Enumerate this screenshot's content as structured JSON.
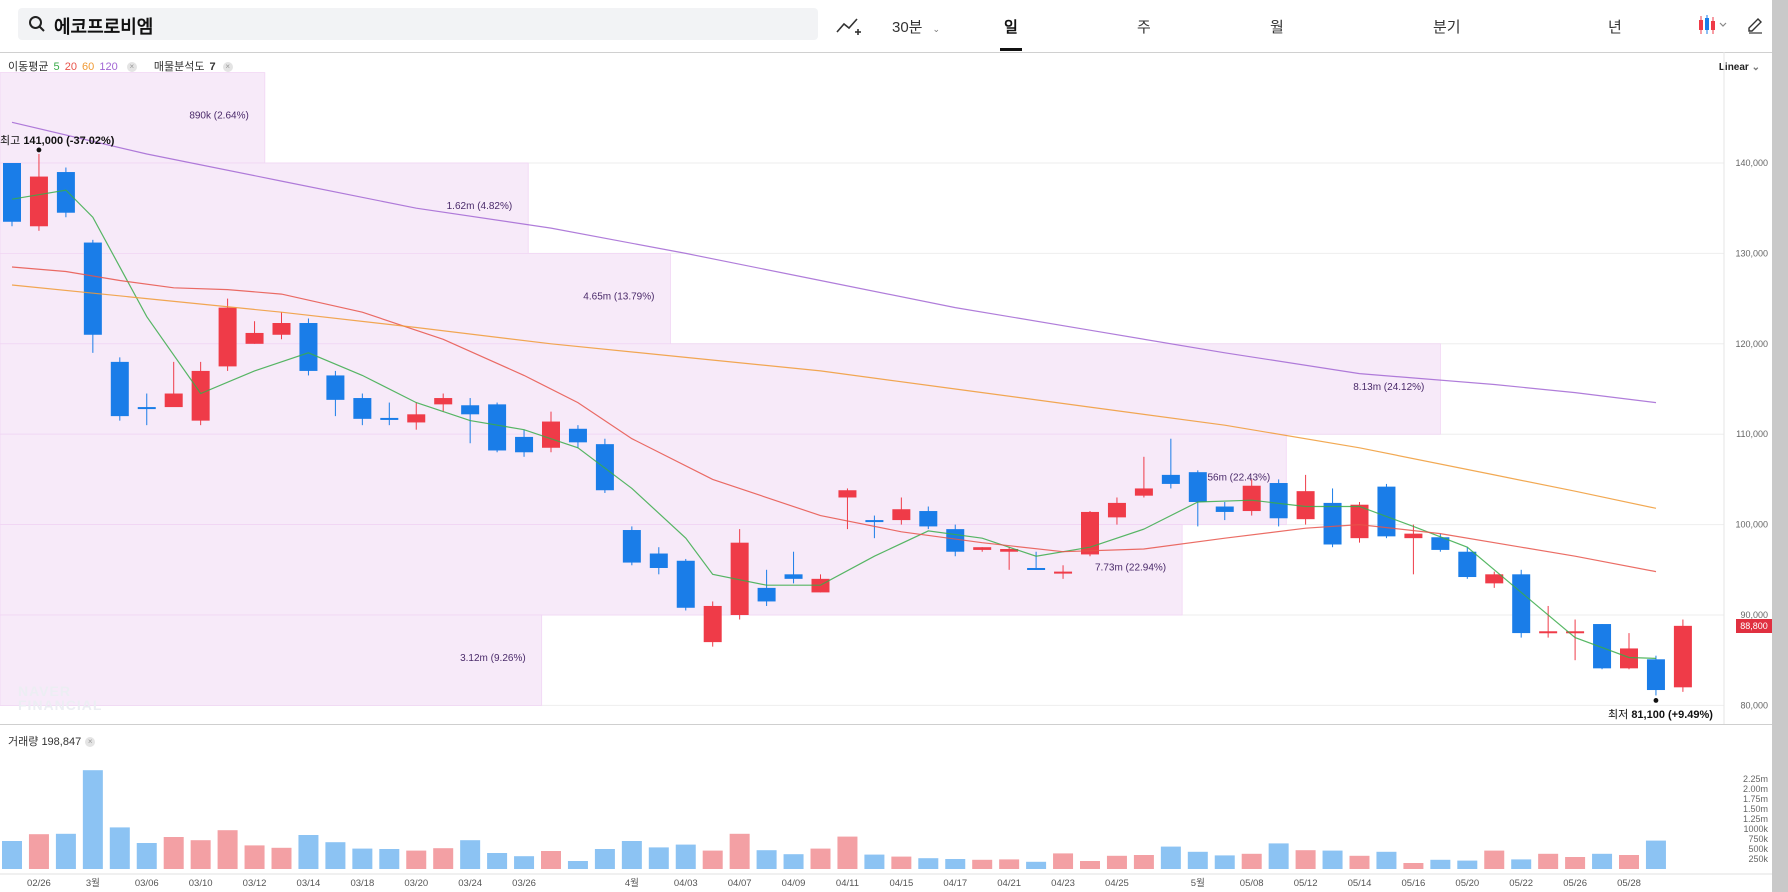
{
  "search": {
    "query": "에코프로비엠"
  },
  "toolbar": {
    "interval": "30분",
    "tabs": [
      "일",
      "주",
      "월",
      "분기",
      "년"
    ],
    "selected_tab": "일",
    "scale": "Linear"
  },
  "indicators": {
    "ma_label": "이동평균",
    "ma_periods": [
      {
        "label": "5",
        "color": "#3aab4a"
      },
      {
        "label": "20",
        "color": "#e8534a"
      },
      {
        "label": "60",
        "color": "#f09a35"
      },
      {
        "label": "120",
        "color": "#a266d4"
      }
    ],
    "volume_profile_label": "매물분석도",
    "volume_profile_value": "7"
  },
  "annotations": {
    "max": {
      "prefix": "최고",
      "value": "141,000 (-37.02%)"
    },
    "min": {
      "prefix": "최저",
      "value": "81,100 (+9.49%)"
    },
    "current_price": "88,800",
    "watermark_lines": [
      "NAVER",
      "FINANCIAL"
    ]
  },
  "volume": {
    "label": "거래량",
    "value": "198,847"
  },
  "colors": {
    "up": "#ef3b48",
    "down": "#1a7de8",
    "up_vol": "#f3a0a4",
    "down_vol": "#8cc3f3",
    "profile": "#f7eaf9"
  },
  "chart_data": {
    "type": "candlestick",
    "y_axis_ticks": [
      "140,000",
      "130,000",
      "120,000",
      "110,000",
      "100,000",
      "90,000",
      "80,000"
    ],
    "y_axis_values": [
      140000,
      130000,
      120000,
      110000,
      100000,
      90000,
      80000
    ],
    "ylim": [
      77000,
      150000
    ],
    "x_tick_labels": [
      {
        "i": 1,
        "label": "02/26"
      },
      {
        "i": 3,
        "label": "3월"
      },
      {
        "i": 5,
        "label": "03/06"
      },
      {
        "i": 7,
        "label": "03/10"
      },
      {
        "i": 9,
        "label": "03/12"
      },
      {
        "i": 11,
        "label": "03/14"
      },
      {
        "i": 13,
        "label": "03/18"
      },
      {
        "i": 15,
        "label": "03/20"
      },
      {
        "i": 17,
        "label": "03/24"
      },
      {
        "i": 19,
        "label": "03/26"
      },
      {
        "i": 23,
        "label": "4월"
      },
      {
        "i": 25,
        "label": "04/03"
      },
      {
        "i": 27,
        "label": "04/07"
      },
      {
        "i": 29,
        "label": "04/09"
      },
      {
        "i": 31,
        "label": "04/11"
      },
      {
        "i": 33,
        "label": "04/15"
      },
      {
        "i": 35,
        "label": "04/17"
      },
      {
        "i": 37,
        "label": "04/21"
      },
      {
        "i": 39,
        "label": "04/23"
      },
      {
        "i": 41,
        "label": "04/25"
      },
      {
        "i": 44,
        "label": "5월"
      },
      {
        "i": 46,
        "label": "05/08"
      },
      {
        "i": 48,
        "label": "05/12"
      },
      {
        "i": 50,
        "label": "05/14"
      },
      {
        "i": 52,
        "label": "05/16"
      },
      {
        "i": 54,
        "label": "05/20"
      },
      {
        "i": 56,
        "label": "05/22"
      },
      {
        "i": 58,
        "label": "05/26"
      },
      {
        "i": 60,
        "label": "05/28"
      }
    ],
    "candles": [
      [
        140000,
        133500,
        139500,
        133000
      ],
      [
        133000,
        138500,
        141000,
        132500
      ],
      [
        139000,
        134500,
        139500,
        134000
      ],
      [
        131200,
        121000,
        131500,
        119000
      ],
      [
        118000,
        112000,
        118500,
        111500
      ],
      [
        113000,
        112800,
        114500,
        111000
      ],
      [
        113000,
        114500,
        118000,
        113500
      ],
      [
        111500,
        117000,
        118000,
        111000
      ],
      [
        117500,
        124000,
        125000,
        117000
      ],
      [
        120000,
        121200,
        122500,
        120000
      ],
      [
        121000,
        122300,
        123500,
        120500
      ],
      [
        122300,
        117000,
        122800,
        116500
      ],
      [
        116500,
        113800,
        117000,
        112000
      ],
      [
        114000,
        111700,
        114500,
        111000
      ],
      [
        111800,
        111600,
        113500,
        111000
      ],
      [
        111300,
        112200,
        113500,
        110500
      ],
      [
        113300,
        114000,
        114500,
        112500
      ],
      [
        113200,
        112200,
        114000,
        109000
      ],
      [
        113300,
        108200,
        113500,
        108000
      ],
      [
        109700,
        108000,
        110500,
        107500
      ],
      [
        108500,
        111400,
        112500,
        108000
      ],
      [
        110600,
        109100,
        111000,
        108500
      ],
      [
        108900,
        103800,
        109500,
        103500
      ],
      [
        99400,
        95800,
        99800,
        95500
      ],
      [
        96800,
        95200,
        97500,
        94500
      ],
      [
        96000,
        90800,
        96200,
        90500
      ],
      [
        87000,
        91000,
        91500,
        86500
      ],
      [
        90000,
        98000,
        99500,
        89500
      ],
      [
        93000,
        91500,
        95000,
        91000
      ],
      [
        94500,
        94000,
        97000,
        93500
      ],
      [
        92500,
        94000,
        94500,
        92500
      ],
      [
        103000,
        103800,
        104000,
        99500
      ],
      [
        100500,
        100400,
        101000,
        98500
      ],
      [
        100500,
        101700,
        103000,
        100000
      ],
      [
        101500,
        99800,
        102000,
        99500
      ],
      [
        99500,
        97000,
        100000,
        96500
      ],
      [
        97200,
        97500,
        97500,
        97000
      ],
      [
        97000,
        97300,
        97500,
        95000
      ],
      [
        95200,
        95100,
        97000,
        95000
      ],
      [
        94800,
        94800,
        95500,
        94000
      ],
      [
        96700,
        101400,
        101500,
        96500
      ],
      [
        100800,
        102400,
        103000,
        100000
      ],
      [
        103200,
        104000,
        107500,
        103000
      ],
      [
        105500,
        104500,
        109500,
        104000
      ],
      [
        105800,
        102500,
        106000,
        99800
      ],
      [
        102000,
        101400,
        102500,
        100500
      ],
      [
        101500,
        104300,
        105000,
        101000
      ],
      [
        104600,
        100700,
        105000,
        99800
      ],
      [
        100600,
        103700,
        105500,
        100000
      ],
      [
        102400,
        97800,
        104000,
        97500
      ],
      [
        98500,
        102200,
        102500,
        98000
      ],
      [
        104200,
        98700,
        104500,
        98500
      ],
      [
        98500,
        99000,
        100000,
        94500
      ],
      [
        98600,
        97200,
        99000,
        97000
      ],
      [
        97000,
        94200,
        97500,
        94000
      ],
      [
        93500,
        94500,
        94800,
        93000
      ],
      [
        94500,
        88000,
        95000,
        87500
      ],
      [
        88000,
        88200,
        91000,
        87500
      ],
      [
        88000,
        88200,
        89500,
        85000
      ],
      [
        89000,
        84100,
        89000,
        84000
      ],
      [
        84100,
        86300,
        88000,
        84000
      ],
      [
        85100,
        81700,
        85500,
        81100
      ],
      [
        82000,
        88800,
        89500,
        81500
      ]
    ],
    "ma_series": [
      {
        "name": "5",
        "values": [
          [
            0,
            136000
          ],
          [
            2,
            137000
          ],
          [
            3,
            134000
          ],
          [
            5,
            123000
          ],
          [
            7,
            114500
          ],
          [
            9,
            117000
          ],
          [
            11,
            119000
          ],
          [
            13,
            116500
          ],
          [
            15,
            113500
          ],
          [
            17,
            111500
          ],
          [
            19,
            110500
          ],
          [
            21,
            108500
          ],
          [
            23,
            104000
          ],
          [
            25,
            98500
          ],
          [
            26,
            94500
          ],
          [
            28,
            93300
          ],
          [
            30,
            93300
          ],
          [
            32,
            96500
          ],
          [
            34,
            99300
          ],
          [
            36,
            98500
          ],
          [
            38,
            96500
          ],
          [
            40,
            97500
          ],
          [
            42,
            99500
          ],
          [
            44,
            102500
          ],
          [
            46,
            102700
          ],
          [
            48,
            102000
          ],
          [
            50,
            102000
          ],
          [
            52,
            99800
          ],
          [
            54,
            97500
          ],
          [
            56,
            92500
          ],
          [
            58,
            87500
          ],
          [
            60,
            85300
          ],
          [
            61,
            85200
          ]
        ]
      },
      {
        "name": "20",
        "values": [
          [
            0,
            128500
          ],
          [
            2,
            128000
          ],
          [
            4,
            127000
          ],
          [
            6,
            126200
          ],
          [
            8,
            126000
          ],
          [
            10,
            125500
          ],
          [
            13,
            123500
          ],
          [
            16,
            120500
          ],
          [
            19,
            116500
          ],
          [
            21,
            113500
          ],
          [
            23,
            109500
          ],
          [
            26,
            105000
          ],
          [
            30,
            101000
          ],
          [
            33,
            99200
          ],
          [
            36,
            98000
          ],
          [
            39,
            97000
          ],
          [
            42,
            97300
          ],
          [
            45,
            98500
          ],
          [
            48,
            99600
          ],
          [
            50,
            100000
          ],
          [
            53,
            99000
          ],
          [
            56,
            97500
          ],
          [
            58,
            96500
          ],
          [
            61,
            94800
          ]
        ]
      },
      {
        "name": "60",
        "values": [
          [
            0,
            126500
          ],
          [
            5,
            125000
          ],
          [
            10,
            123500
          ],
          [
            15,
            121800
          ],
          [
            20,
            120000
          ],
          [
            25,
            118500
          ],
          [
            30,
            117000
          ],
          [
            35,
            115000
          ],
          [
            40,
            113000
          ],
          [
            45,
            111000
          ],
          [
            50,
            108500
          ],
          [
            55,
            105500
          ],
          [
            58,
            103700
          ],
          [
            61,
            101800
          ]
        ]
      },
      {
        "name": "120",
        "values": [
          [
            0,
            144500
          ],
          [
            5,
            141000
          ],
          [
            10,
            138000
          ],
          [
            15,
            135000
          ],
          [
            20,
            132800
          ],
          [
            25,
            130000
          ],
          [
            30,
            127000
          ],
          [
            35,
            124000
          ],
          [
            40,
            121500
          ],
          [
            45,
            119000
          ],
          [
            50,
            116700
          ],
          [
            55,
            115500
          ],
          [
            58,
            114600
          ],
          [
            61,
            113500
          ]
        ]
      }
    ],
    "volume_profile": [
      {
        "low": 140000,
        "high": 150000,
        "label": "890k (2.64%)",
        "share": 0.1536
      },
      {
        "low": 130000,
        "high": 140000,
        "label": "1.62m (4.82%)",
        "share": 0.3064
      },
      {
        "low": 120000,
        "high": 130000,
        "label": "4.65m (13.79%)",
        "share": 0.3889
      },
      {
        "low": 110000,
        "high": 120000,
        "label": "8.13m (24.12%)",
        "share": 0.8355
      },
      {
        "low": 100000,
        "high": 110000,
        "label": "7.56m (22.43%)",
        "share": 0.7461
      },
      {
        "low": 90000,
        "high": 100000,
        "label": "7.73m (22.94%)",
        "share": 0.6857
      },
      {
        "low": 80000,
        "high": 90000,
        "label": "3.12m (9.26%)",
        "share": 0.3142
      }
    ],
    "volume_ticks": [
      "2.25m",
      "2.00m",
      "1.75m",
      "1.50m",
      "1.25m",
      "1000k",
      "750k",
      "500k",
      "250k"
    ],
    "volume_tick_values": [
      2250000,
      2000000,
      1750000,
      1500000,
      1250000,
      1000000,
      750000,
      500000,
      250000
    ],
    "volumes": [
      700000,
      870000,
      880000,
      2470000,
      1040000,
      650000,
      800000,
      720000,
      970000,
      590000,
      530000,
      850000,
      670000,
      510000,
      500000,
      460000,
      520000,
      720000,
      400000,
      320000,
      450000,
      200000,
      500000,
      700000,
      540000,
      610000,
      460000,
      880000,
      470000,
      370000,
      510000,
      810000,
      360000,
      310000,
      270000,
      250000,
      230000,
      240000,
      180000,
      390000,
      200000,
      330000,
      350000,
      560000,
      430000,
      340000,
      380000,
      640000,
      470000,
      460000,
      330000,
      430000,
      150000,
      230000,
      210000,
      460000,
      240000,
      380000,
      300000,
      380000,
      350000,
      710000
    ]
  }
}
